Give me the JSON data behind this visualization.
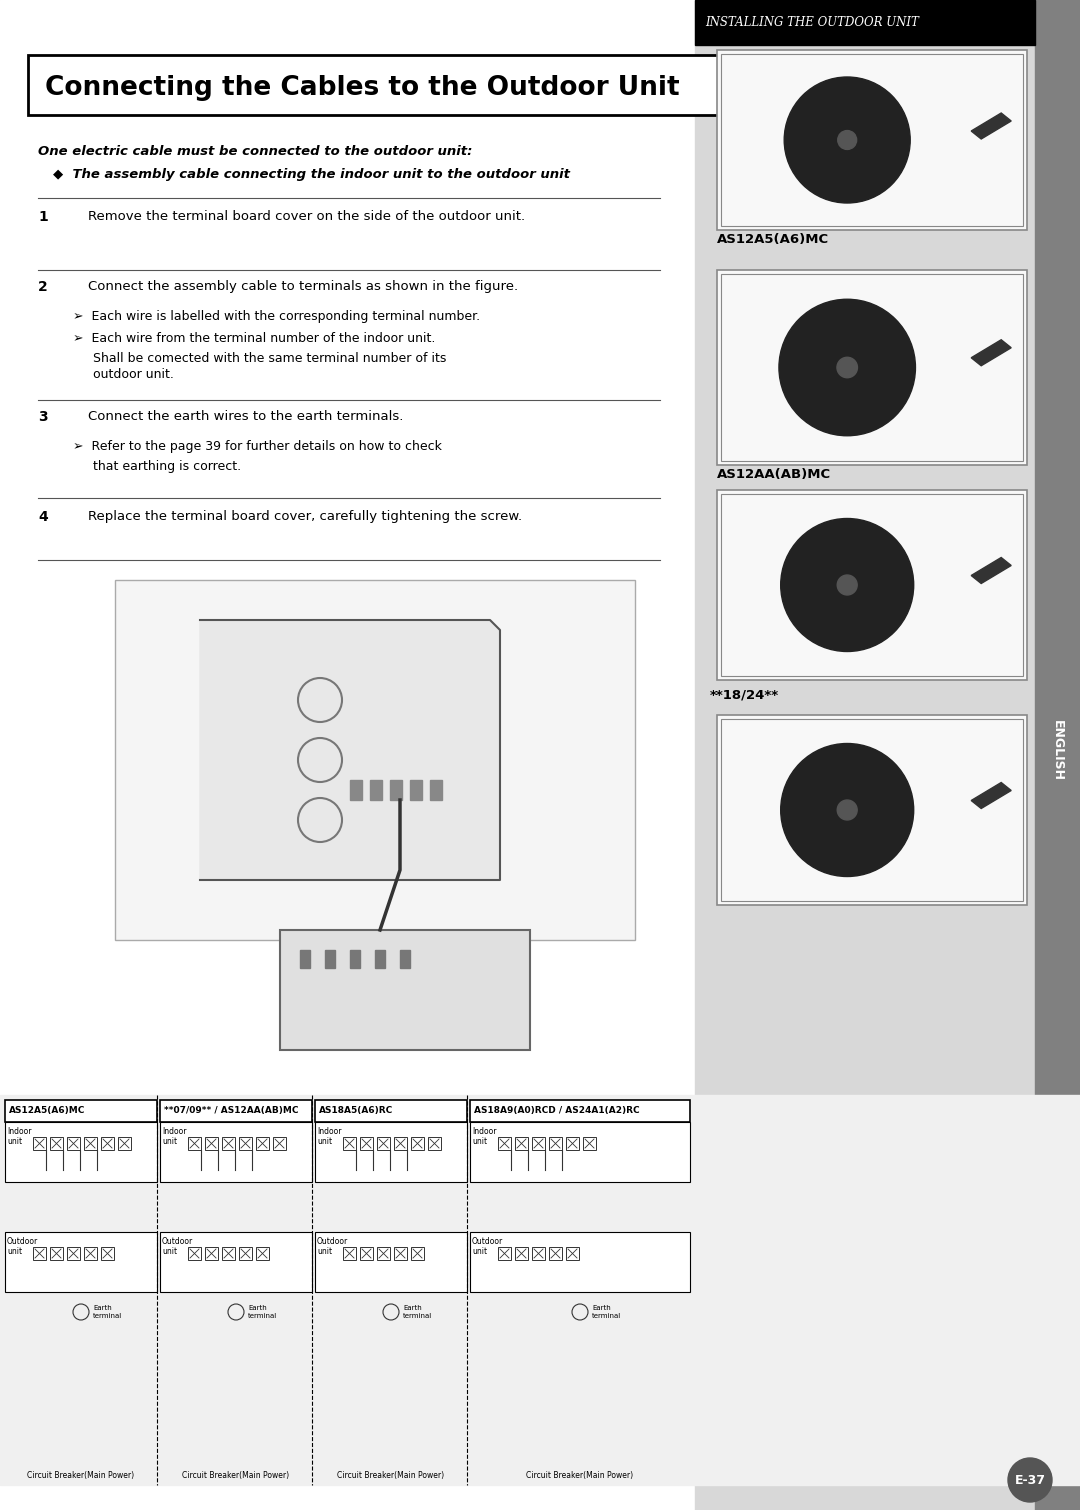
{
  "page_bg": "#f0f0f0",
  "content_bg": "#ffffff",
  "header_bg": "#000000",
  "header_text": "Installing the Outdoor Unit",
  "header_text_color": "#ffffff",
  "sidebar_bg": "#808080",
  "sidebar_text": "ENGLISH",
  "title": "Connecting the Cables to the Outdoor Unit",
  "title_box_border": "#000000",
  "bold_line1": "One electric cable must be connected to the outdoor unit:",
  "bullet_line1": "◆  The assembly cable connecting the indoor unit to the outdoor unit",
  "step1_num": "1",
  "step1_text": "Remove the terminal board cover on the side of the outdoor unit.",
  "step2_num": "2",
  "step2_text": "Connect the assembly cable to terminals as shown in the figure.",
  "step2_sub1": "➢  Each wire is labelled with the corresponding terminal number.",
  "step2_sub2": "➢  Each wire from the terminal number of the indoor unit.\n     Shall be comected with the same terminal number of its\n     outdoor unit.",
  "step3_num": "3",
  "step3_text": "Connect the earth wires to the earth terminals.",
  "step3_sub1": "➢  Refer to the page 39 for further details on how to check\n     that earthing is correct.",
  "step4_num": "4",
  "step4_text": "Replace the terminal board cover, carefully tightening the screw.",
  "label_0709": "**07/09**",
  "label_AS12A5A6MC": "AS12A5(A6)MC",
  "label_AS12AAABMC": "AS12AA(AB)MC",
  "label_1824": "**18/24**",
  "diagram_label1": "AS12A5(A6)MC",
  "diagram_label2": "**07/09** / AS12AA(AB)MC",
  "diagram_label3": "AS18A5(A6)RC",
  "diagram_label4": "AS18A9(A0)RCD / AS24A1(A2)RC",
  "page_num": "E-37",
  "right_panel_bg": "#d8d8d8",
  "image_border": "#aaaaaa"
}
